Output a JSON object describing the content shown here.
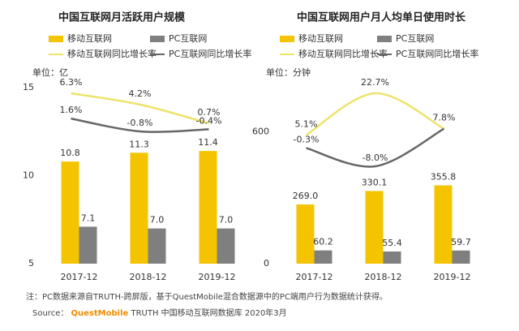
{
  "chart_data": [
    {
      "type": "bar",
      "title": "中国互联网月活跃用户规模",
      "unit_label": "单位：亿",
      "categories": [
        "2017-12",
        "2018-12",
        "2019-12"
      ],
      "ylim": [
        5,
        15
      ],
      "yticks": [
        5,
        10,
        15
      ],
      "series": [
        {
          "name": "移动互联网",
          "type": "bar",
          "color": "#f5c400",
          "values": [
            10.8,
            11.3,
            11.4
          ],
          "value_labels": [
            "10.8",
            "11.3",
            "11.4"
          ]
        },
        {
          "name": "PC互联网",
          "type": "bar",
          "color": "#7f7f7f",
          "values": [
            7.1,
            7.0,
            7.0
          ],
          "value_labels": [
            "7.1",
            "7.0",
            "7.0"
          ]
        },
        {
          "name": "移动互联网同比增长率",
          "type": "line",
          "color": "#ede36a",
          "values": [
            6.3,
            4.2,
            0.7
          ],
          "value_labels": [
            "6.3%",
            "4.2%",
            "0.7%"
          ]
        },
        {
          "name": "PC互联网同比增长率",
          "type": "line",
          "color": "#666666",
          "values": [
            1.6,
            -0.8,
            -0.4
          ],
          "value_labels": [
            "1.6%",
            "-0.8%",
            "-0.4%"
          ]
        }
      ]
    },
    {
      "type": "bar",
      "title": "中国互联网用户月人均单日使用时长",
      "unit_label": "单位：分钟",
      "categories": [
        "2017-12",
        "2018-12",
        "2019-12"
      ],
      "ylim": [
        0,
        800
      ],
      "yticks": [
        0,
        600
      ],
      "series": [
        {
          "name": "移动互联网",
          "type": "bar",
          "color": "#f5c400",
          "values": [
            269.0,
            330.1,
            355.8
          ],
          "value_labels": [
            "269.0",
            "330.1",
            "355.8"
          ]
        },
        {
          "name": "PC互联网",
          "type": "bar",
          "color": "#7f7f7f",
          "values": [
            60.2,
            55.4,
            59.7
          ],
          "value_labels": [
            "60.2",
            "55.4",
            "59.7"
          ]
        },
        {
          "name": "移动互联网同比增长率",
          "type": "line",
          "color": "#ede36a",
          "values": [
            5.1,
            22.7,
            7.8
          ],
          "value_labels": [
            "5.1%",
            "22.7%",
            "7.8%"
          ]
        },
        {
          "name": "PC互联网同比增长率",
          "type": "line",
          "color": "#666666",
          "values": [
            -0.3,
            -8.0,
            7.8
          ],
          "value_labels": [
            "-0.3%",
            "-8.0%",
            null
          ]
        }
      ]
    }
  ],
  "footnote": "注：PC数据来源自TRUTH-跨屏版，基于QuestMobile混合数据源中的PC端用户行为数据统计获得。",
  "source": {
    "prefix": "Source：",
    "brand": "QuestMobile",
    "text": "TRUTH 中国移动互联网数据库 2020年3月"
  }
}
